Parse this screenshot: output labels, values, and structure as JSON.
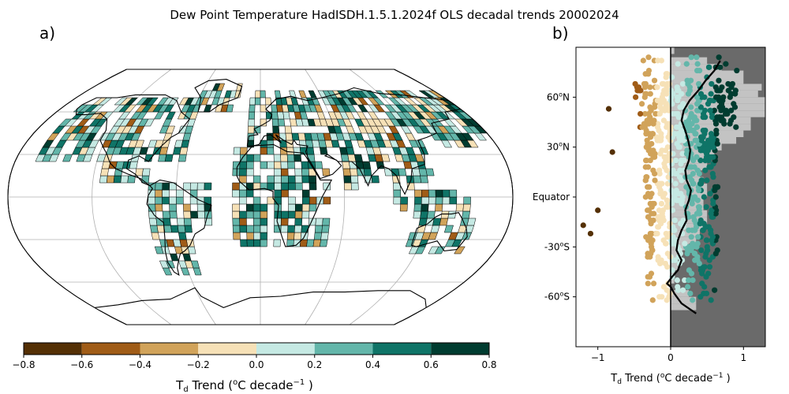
{
  "title": "Dew Point Temperature HadISDH.1.5.1.2024f OLS decadal trends 20002024",
  "panel_a_label": "a)",
  "panel_b_label": "b)",
  "colors": {
    "bins": [
      "#543005",
      "#a05c17",
      "#d1a35a",
      "#f6e1b7",
      "#c5e9e3",
      "#63b6aa",
      "#0f7467",
      "#003c30"
    ],
    "ocean": "#ffffff",
    "grid": "#b0b0b0",
    "panel_b_bg": "#6a6a6a",
    "panel_b_light": "#c3c3c3"
  },
  "colorbar": {
    "title_main": "T",
    "title_sub": "d",
    "title_rest": " Trend (",
    "title_sup": "o",
    "title_rest2": "C decade",
    "title_sup2": "−1",
    "title_end": " )",
    "ticks": [
      "−0.8",
      "−0.6",
      "−0.4",
      "−0.2",
      "0.0",
      "0.2",
      "0.4",
      "0.6",
      "0.8"
    ]
  },
  "chart_data": [
    {
      "type": "heatmap",
      "description_of_axes": "map",
      "projection": "Robinson",
      "value_range": [
        -0.8,
        0.8
      ],
      "bin_edges": [
        -0.8,
        -0.6,
        -0.4,
        -0.2,
        0.0,
        0.2,
        0.4,
        0.6,
        0.8
      ]
    },
    {
      "type": "scatter",
      "xlabel_main": "T",
      "xlabel_sub": "d",
      "xlabel_rest": " Trend (",
      "xlabel_sup": "o",
      "xlabel_rest2": "C decade",
      "xlabel_sup2": "−1",
      "xlabel_end": " )",
      "xlim": [
        -1.3,
        1.3
      ],
      "ylim": [
        -90,
        90
      ],
      "xticks": [
        "−1",
        "0",
        "1"
      ],
      "yticks": [
        {
          "lat": 60,
          "label_num": "60",
          "label_sup": "o",
          "label_hemi": "N"
        },
        {
          "lat": 30,
          "label_num": "30",
          "label_sup": "o",
          "label_hemi": "N"
        },
        {
          "lat": 0,
          "label_num": "Equator",
          "label_sup": "",
          "label_hemi": ""
        },
        {
          "lat": -30,
          "label_num": "-30",
          "label_sup": "o",
          "label_hemi": "S"
        },
        {
          "lat": -60,
          "label_num": "-60",
          "label_sup": "o",
          "label_hemi": "S"
        }
      ],
      "zonal_mean_line": [
        {
          "lat": 82,
          "trend": 0.68
        },
        {
          "lat": 76,
          "trend": 0.6
        },
        {
          "lat": 70,
          "trend": 0.48
        },
        {
          "lat": 64,
          "trend": 0.38
        },
        {
          "lat": 58,
          "trend": 0.26
        },
        {
          "lat": 52,
          "trend": 0.18
        },
        {
          "lat": 46,
          "trend": 0.15
        },
        {
          "lat": 40,
          "trend": 0.2
        },
        {
          "lat": 34,
          "trend": 0.24
        },
        {
          "lat": 28,
          "trend": 0.27
        },
        {
          "lat": 22,
          "trend": 0.25
        },
        {
          "lat": 16,
          "trend": 0.2
        },
        {
          "lat": 10,
          "trend": 0.22
        },
        {
          "lat": 4,
          "trend": 0.28
        },
        {
          "lat": -2,
          "trend": 0.25
        },
        {
          "lat": -8,
          "trend": 0.2
        },
        {
          "lat": -14,
          "trend": 0.22
        },
        {
          "lat": -20,
          "trend": 0.15
        },
        {
          "lat": -26,
          "trend": 0.1
        },
        {
          "lat": -32,
          "trend": 0.08
        },
        {
          "lat": -38,
          "trend": 0.15
        },
        {
          "lat": -44,
          "trend": 0.1
        },
        {
          "lat": -48,
          "trend": 0.02
        },
        {
          "lat": -52,
          "trend": -0.05
        },
        {
          "lat": -54,
          "trend": 0.0
        },
        {
          "lat": -58,
          "trend": 0.05
        },
        {
          "lat": -64,
          "trend": 0.15
        },
        {
          "lat": -70,
          "trend": 0.35
        }
      ]
    }
  ]
}
